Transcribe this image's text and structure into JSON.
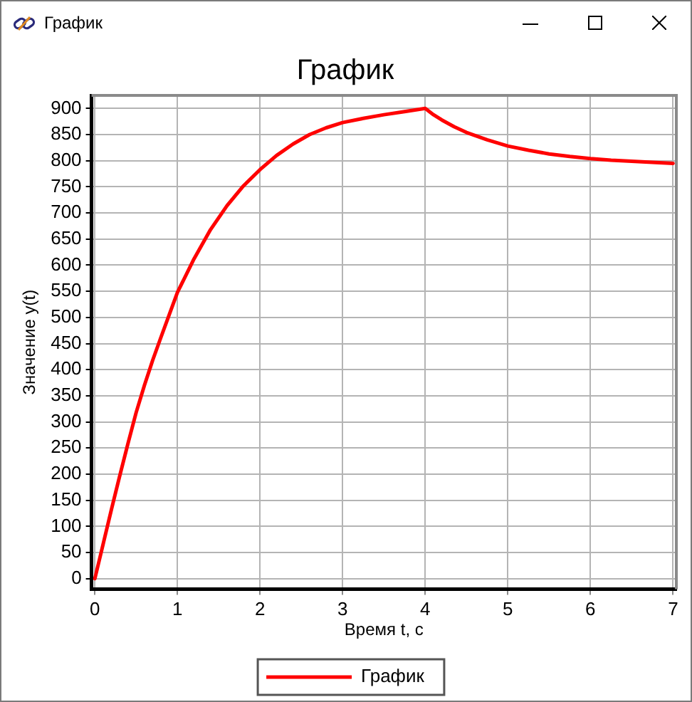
{
  "chart_data": {
    "type": "line",
    "title": "График",
    "xlabel": "Время t, с",
    "ylabel": "Значение y(t)",
    "annotations": [
      "График"
    ],
    "x": [
      0,
      0.1,
      0.2,
      0.3,
      0.4,
      0.5,
      0.6,
      0.7,
      0.8,
      0.9,
      1,
      1.2,
      1.4,
      1.6,
      1.8,
      2,
      2.2,
      2.4,
      2.6,
      2.8,
      3,
      3.25,
      3.5,
      3.75,
      4,
      4.1,
      4.2,
      4.35,
      4.5,
      4.75,
      5,
      5.25,
      5.5,
      5.75,
      6,
      6.25,
      6.5,
      6.75,
      7
    ],
    "series": [
      {
        "name": "График",
        "color": "#ff0000",
        "values": [
          0,
          66,
          132,
          196,
          258,
          318,
          370,
          418,
          462,
          505,
          548,
          612,
          668,
          714,
          752,
          783,
          810,
          832,
          850,
          863,
          873,
          881,
          888,
          894,
          900,
          888,
          878,
          865,
          854,
          840,
          828,
          820,
          813,
          808,
          804,
          801,
          799,
          797,
          795
        ]
      }
    ],
    "xlim": [
      -0.04,
      7.04
    ],
    "ylim": [
      -20,
      925
    ],
    "xticks": [
      0,
      1,
      2,
      3,
      4,
      5,
      6,
      7
    ],
    "yticks": [
      0,
      50,
      100,
      150,
      200,
      250,
      300,
      350,
      400,
      450,
      500,
      550,
      600,
      650,
      700,
      750,
      800,
      850,
      900
    ],
    "grid": true,
    "legend": "bottom",
    "marker": "none",
    "line_style": "solid"
  }
}
